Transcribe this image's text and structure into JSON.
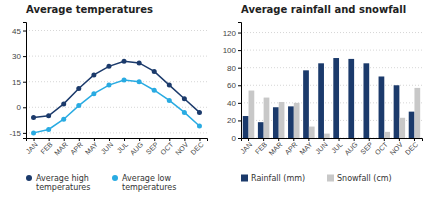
{
  "chart_data": [
    {
      "type": "line",
      "title": "Average temperatures",
      "categories": [
        "JAN",
        "FEB",
        "MAR",
        "APR",
        "MAY",
        "JUN",
        "JUL",
        "AUG",
        "SEP",
        "OCT",
        "NOV",
        "DEC"
      ],
      "series": [
        {
          "name": "Average high\ntemperatures",
          "color": "#1b3a6b",
          "values": [
            -6,
            -5,
            2,
            11,
            19,
            24,
            27,
            26,
            21,
            13,
            5,
            -3
          ]
        },
        {
          "name": "Average low\ntemperatures",
          "color": "#29abe2",
          "values": [
            -15,
            -13,
            -7,
            1,
            8,
            13,
            16,
            15,
            10,
            4,
            -3,
            -11
          ]
        }
      ],
      "ylim": [
        -18,
        50
      ],
      "yticks": [
        -15,
        0,
        15,
        30,
        45
      ],
      "grid": true,
      "legend": "bottom",
      "marker": "circle"
    },
    {
      "type": "bar",
      "title": "Average rainfall and snowfall",
      "categories": [
        "JAN",
        "FEB",
        "MAR",
        "APR",
        "MAY",
        "JUN",
        "JUL",
        "AUG",
        "SEP",
        "OCT",
        "NOV",
        "DEC"
      ],
      "series": [
        {
          "name": "Rainfall (mm)",
          "color": "#1b3a6b",
          "values": [
            25,
            18,
            35,
            36,
            77,
            85,
            91,
            90,
            85,
            70,
            60,
            30
          ]
        },
        {
          "name": "Snowfall (cm)",
          "color": "#c8c8c8",
          "values": [
            54,
            46,
            41,
            40,
            13,
            5,
            0,
            0,
            0,
            7,
            23,
            57
          ]
        }
      ],
      "ylim": [
        0,
        132
      ],
      "yticks": [
        0,
        20,
        40,
        60,
        80,
        100,
        120
      ],
      "grid": true,
      "legend": "bottom"
    }
  ]
}
